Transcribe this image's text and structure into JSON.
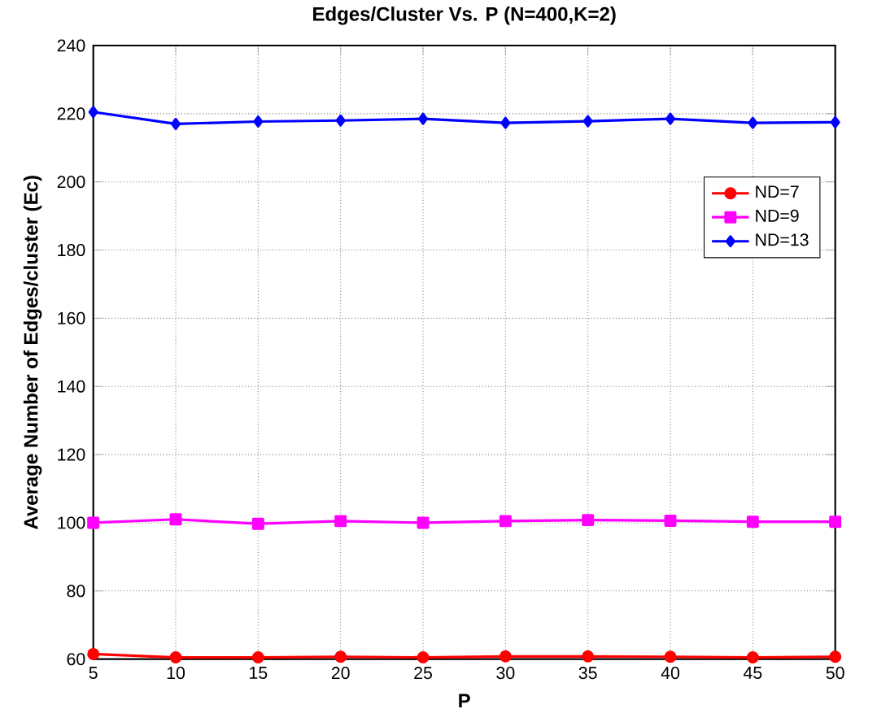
{
  "chart_data": {
    "type": "line",
    "title": "Edges/Cluster Vs. P (N=400,K=2)",
    "xlabel": "P",
    "ylabel": "Average Number of Edges/cluster (Ec)",
    "x": [
      5,
      10,
      15,
      20,
      25,
      30,
      35,
      40,
      45,
      50
    ],
    "series": [
      {
        "name": "ND=7",
        "color": "#ff0000",
        "marker": "circle",
        "values": [
          61.5,
          60.5,
          60.5,
          60.7,
          60.5,
          60.8,
          60.8,
          60.7,
          60.5,
          60.7
        ]
      },
      {
        "name": "ND=9",
        "color": "#ff00ff",
        "marker": "square",
        "values": [
          100,
          101,
          99.7,
          100.5,
          100,
          100.5,
          100.8,
          100.6,
          100.3,
          100.3
        ]
      },
      {
        "name": "ND=13",
        "color": "#0000ff",
        "marker": "diamond",
        "values": [
          220.5,
          217,
          217.7,
          218,
          218.5,
          217.3,
          217.8,
          218.5,
          217.3,
          217.5
        ]
      }
    ],
    "xlim": [
      5,
      50
    ],
    "ylim": [
      60,
      240
    ],
    "xticks": [
      5,
      10,
      15,
      20,
      25,
      30,
      35,
      40,
      45,
      50
    ],
    "yticks": [
      60,
      80,
      100,
      120,
      140,
      160,
      180,
      200,
      220,
      240
    ],
    "grid": true,
    "legend": "right",
    "line_style": "solid"
  }
}
